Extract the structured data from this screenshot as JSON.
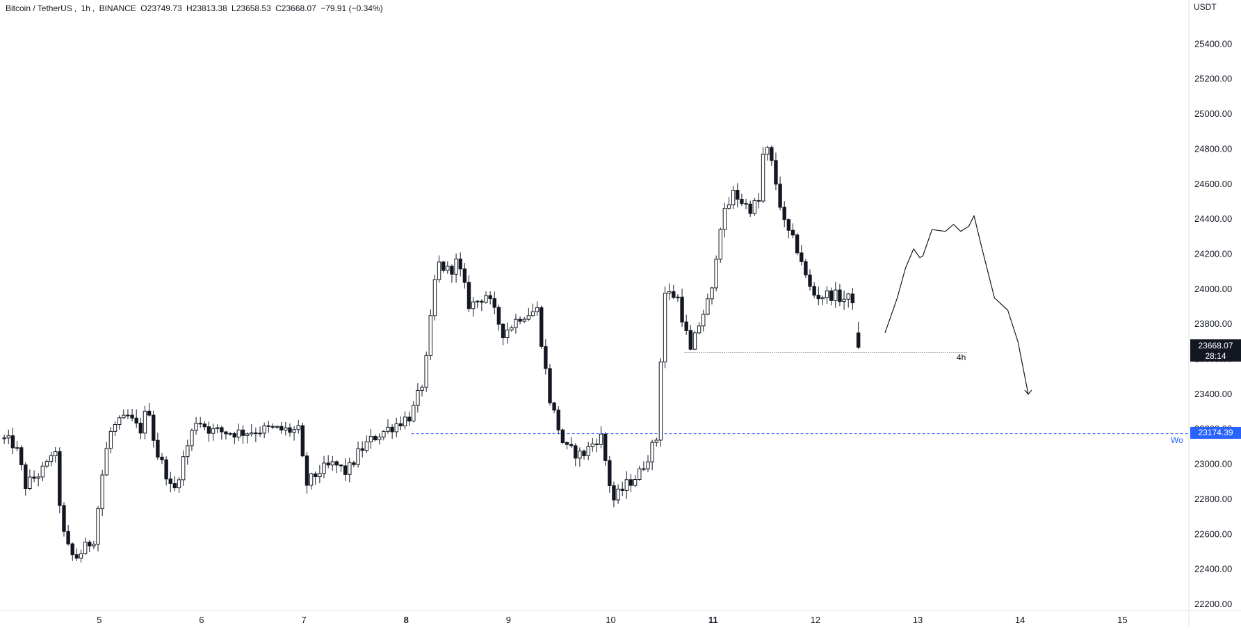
{
  "header": {
    "symbol": "Bitcoin / TetherUS",
    "interval": "1h",
    "exchange": "BINANCE",
    "open": "O23749.73",
    "high": "H23813.38",
    "low": "L23658.53",
    "close": "C23668.07",
    "change": "−79.91 (−0.34%)"
  },
  "price_axis": {
    "currency": "USDT",
    "last_price": "23668.07",
    "countdown": "28:14",
    "line_price": "23174.39",
    "line_label": "Wo",
    "level_label": "4h"
  },
  "colors": {
    "up": "#ffffff",
    "down": "#131722",
    "wick": "#131722",
    "hline": "#2962ff",
    "last_price_bg": "#131722"
  },
  "chart_data": {
    "type": "candlestick",
    "title": "Bitcoin / TetherUS, 1h, BINANCE",
    "ylabel": "USDT",
    "ylim": [
      22200,
      25600
    ],
    "y_ticks": [
      "22200.00",
      "22400.00",
      "22600.00",
      "22800.00",
      "23000.00",
      "23200.00",
      "23400.00",
      "23600.00",
      "23800.00",
      "24000.00",
      "24200.00",
      "24400.00",
      "24600.00",
      "24800.00",
      "25000.00",
      "25200.00",
      "25400.00"
    ],
    "x_ticks": [
      "5",
      "6",
      "7",
      "8",
      "9",
      "10",
      "11",
      "12",
      "13",
      "14",
      "15"
    ],
    "x_tick_days": [
      5,
      6,
      7,
      8,
      9,
      10,
      11,
      12,
      13,
      14,
      15
    ],
    "bold_ticks": [
      "8",
      "11"
    ],
    "x_range_days": [
      4.03,
      15.65
    ],
    "candle_interval_hours": 1,
    "anchors": [
      {
        "day": 4.03,
        "price": 23150
      },
      {
        "day": 4.18,
        "price": 23110
      },
      {
        "day": 4.28,
        "price": 22880
      },
      {
        "day": 4.36,
        "price": 22920
      },
      {
        "day": 4.48,
        "price": 22980
      },
      {
        "day": 4.56,
        "price": 23110
      },
      {
        "day": 4.64,
        "price": 22620
      },
      {
        "day": 4.72,
        "price": 22480
      },
      {
        "day": 4.78,
        "price": 22470
      },
      {
        "day": 4.95,
        "price": 22580
      },
      {
        "day": 5.05,
        "price": 23030
      },
      {
        "day": 5.12,
        "price": 23200
      },
      {
        "day": 5.28,
        "price": 23270
      },
      {
        "day": 5.4,
        "price": 23190
      },
      {
        "day": 5.48,
        "price": 23340
      },
      {
        "day": 5.55,
        "price": 23080
      },
      {
        "day": 5.65,
        "price": 22960
      },
      {
        "day": 5.72,
        "price": 22820
      },
      {
        "day": 5.82,
        "price": 23030
      },
      {
        "day": 5.95,
        "price": 23260
      },
      {
        "day": 6.1,
        "price": 23190
      },
      {
        "day": 6.35,
        "price": 23180
      },
      {
        "day": 6.65,
        "price": 23200
      },
      {
        "day": 6.95,
        "price": 23190
      },
      {
        "day": 7.02,
        "price": 22880
      },
      {
        "day": 7.15,
        "price": 22960
      },
      {
        "day": 7.3,
        "price": 23000
      },
      {
        "day": 7.42,
        "price": 22950
      },
      {
        "day": 7.55,
        "price": 23080
      },
      {
        "day": 7.7,
        "price": 23160
      },
      {
        "day": 7.9,
        "price": 23230
      },
      {
        "day": 8.05,
        "price": 23280
      },
      {
        "day": 8.18,
        "price": 23500
      },
      {
        "day": 8.3,
        "price": 24150
      },
      {
        "day": 8.42,
        "price": 24100
      },
      {
        "day": 8.5,
        "price": 24160
      },
      {
        "day": 8.62,
        "price": 23900
      },
      {
        "day": 8.78,
        "price": 23970
      },
      {
        "day": 8.95,
        "price": 23750
      },
      {
        "day": 9.12,
        "price": 23850
      },
      {
        "day": 9.28,
        "price": 23880
      },
      {
        "day": 9.4,
        "price": 23380
      },
      {
        "day": 9.55,
        "price": 23090
      },
      {
        "day": 9.72,
        "price": 23050
      },
      {
        "day": 9.9,
        "price": 23170
      },
      {
        "day": 10.02,
        "price": 22790
      },
      {
        "day": 10.15,
        "price": 22880
      },
      {
        "day": 10.28,
        "price": 22950
      },
      {
        "day": 10.45,
        "price": 23150
      },
      {
        "day": 10.52,
        "price": 23980
      },
      {
        "day": 10.65,
        "price": 23960
      },
      {
        "day": 10.78,
        "price": 23640
      },
      {
        "day": 10.88,
        "price": 23830
      },
      {
        "day": 11.0,
        "price": 24000
      },
      {
        "day": 11.05,
        "price": 24340
      },
      {
        "day": 11.2,
        "price": 24550
      },
      {
        "day": 11.35,
        "price": 24460
      },
      {
        "day": 11.45,
        "price": 24500
      },
      {
        "day": 11.5,
        "price": 24840
      },
      {
        "day": 11.58,
        "price": 24700
      },
      {
        "day": 11.7,
        "price": 24360
      },
      {
        "day": 11.85,
        "price": 24200
      },
      {
        "day": 11.92,
        "price": 24030
      },
      {
        "day": 12.0,
        "price": 23960
      },
      {
        "day": 12.15,
        "price": 23970
      },
      {
        "day": 12.3,
        "price": 23940
      },
      {
        "day": 12.38,
        "price": 23950
      },
      {
        "day": 12.42,
        "price": 23670
      }
    ],
    "last_candle": {
      "open": 23749.73,
      "high": 23813.38,
      "low": 23658.53,
      "close": 23668.07
    },
    "drawings": {
      "dotted_level": {
        "price": 23640,
        "from_day": 10.72,
        "to_day": 13.49,
        "label": "4h"
      },
      "hline": {
        "price": 23174.39,
        "from_day": 8.05,
        "label": "Wo"
      },
      "forecast_path": [
        {
          "day": 12.68,
          "price": 23750
        },
        {
          "day": 12.8,
          "price": 23950
        },
        {
          "day": 12.88,
          "price": 24120
        },
        {
          "day": 12.96,
          "price": 24230
        },
        {
          "day": 13.02,
          "price": 24180
        },
        {
          "day": 13.05,
          "price": 24190
        },
        {
          "day": 13.14,
          "price": 24340
        },
        {
          "day": 13.27,
          "price": 24330
        },
        {
          "day": 13.35,
          "price": 24370
        },
        {
          "day": 13.42,
          "price": 24330
        },
        {
          "day": 13.5,
          "price": 24360
        },
        {
          "day": 13.55,
          "price": 24420
        },
        {
          "day": 13.62,
          "price": 24250
        },
        {
          "day": 13.75,
          "price": 23950
        },
        {
          "day": 13.88,
          "price": 23880
        },
        {
          "day": 13.98,
          "price": 23700
        },
        {
          "day": 14.08,
          "price": 23400
        }
      ]
    }
  }
}
